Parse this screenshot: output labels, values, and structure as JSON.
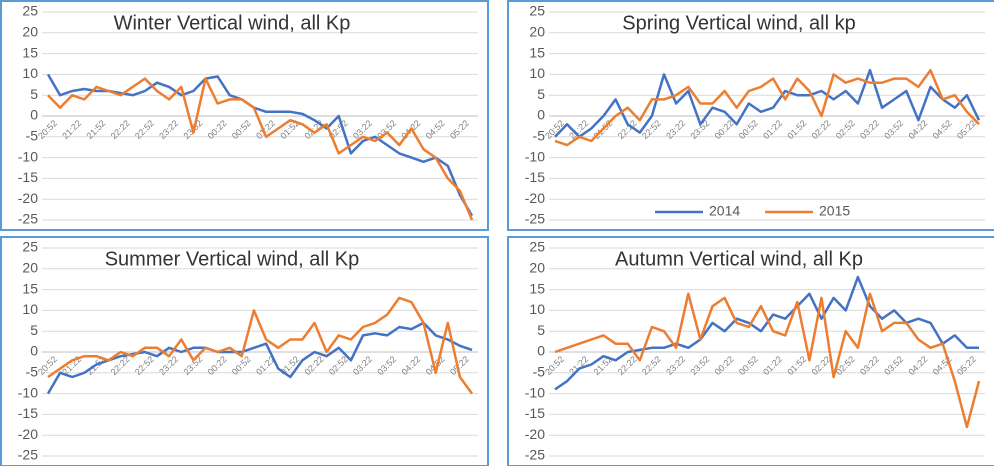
{
  "chart_data": [
    {
      "type": "line",
      "title": "Winter Vertical wind, all Kp",
      "categories": [
        "20:52",
        null,
        "21:22",
        null,
        "21:52",
        null,
        "22:22",
        null,
        "22:52",
        null,
        "23:22",
        null,
        "23:52",
        null,
        "00:22",
        null,
        "00:52",
        null,
        "01:22",
        null,
        "01:52",
        null,
        "02:22",
        null,
        "02:52",
        null,
        "03:22",
        null,
        "03:52",
        null,
        "04:22",
        null,
        "04:52",
        null,
        "05:22",
        null
      ],
      "series": [
        {
          "color": "#4472c4",
          "values": [
            10,
            5,
            6,
            6.5,
            6,
            6,
            5.5,
            5,
            6,
            8,
            7,
            5,
            6,
            9,
            9.5,
            5,
            4,
            2,
            1,
            1,
            1,
            0.5,
            -1,
            -3,
            0,
            -9,
            -6,
            -5,
            -7,
            -9,
            -10,
            -11,
            -10,
            -12,
            -19,
            -24
          ]
        },
        {
          "color": "#ed7d31",
          "values": [
            5,
            2,
            5,
            4,
            7,
            6,
            5,
            7,
            9,
            6,
            4,
            7,
            -4,
            9,
            3,
            4,
            4,
            2,
            -5,
            -3,
            -1,
            -2,
            -4,
            -2,
            -9,
            -7,
            -5,
            -6,
            -4,
            -7,
            -3,
            -8,
            -10,
            -15,
            -18,
            -25
          ]
        }
      ],
      "ylim": [
        -25,
        25
      ],
      "yticks": [
        -25,
        -20,
        -15,
        -10,
        -5,
        0,
        5,
        10,
        15,
        20,
        25
      ],
      "grid": true
    },
    {
      "type": "line",
      "title": "Spring Vertical wind, all kp",
      "categories": [
        "20:52",
        null,
        "21:22",
        null,
        "21:52",
        null,
        "22:22",
        null,
        "22:52",
        null,
        "23:22",
        null,
        "23:52",
        null,
        "00:22",
        null,
        "00:52",
        null,
        "01:22",
        null,
        "01:52",
        null,
        "02:22",
        null,
        "02:52",
        null,
        "03:22",
        null,
        "03:52",
        null,
        "04:22",
        null,
        "04:52",
        null,
        "05:22",
        null
      ],
      "series": [
        {
          "name": "2014",
          "color": "#4472c4",
          "values": [
            -5,
            -2,
            -5,
            -3,
            0,
            4,
            -2,
            -4,
            0,
            10,
            3,
            6,
            -2,
            2,
            1,
            -2,
            3,
            1,
            2,
            6,
            5,
            5,
            6,
            4,
            6,
            3,
            11,
            2,
            4,
            6,
            -1,
            7,
            4,
            2,
            5,
            -1
          ]
        },
        {
          "name": "2015",
          "color": "#ed7d31",
          "values": [
            -6,
            -7,
            -5,
            -6,
            -3,
            0,
            2,
            -1,
            4,
            4,
            5,
            7,
            3,
            3,
            6,
            2,
            6,
            7,
            9,
            4,
            9,
            6,
            0,
            10,
            8,
            9,
            8,
            8,
            9,
            9,
            7,
            11,
            4,
            5,
            1,
            -2
          ]
        }
      ],
      "legend": "bottom",
      "ylim": [
        -25,
        25
      ],
      "yticks": [
        -25,
        -20,
        -15,
        -10,
        -5,
        0,
        5,
        10,
        15,
        20,
        25
      ],
      "grid": true
    },
    {
      "type": "line",
      "title": "Summer Vertical wind, all Kp",
      "categories": [
        "20:52",
        null,
        "21:22",
        null,
        "21:52",
        null,
        "22:22",
        null,
        "22:52",
        null,
        "23:22",
        null,
        "23:52",
        null,
        "00:22",
        null,
        "00:52",
        null,
        "01:22",
        null,
        "01:52",
        null,
        "02:22",
        null,
        "02:52",
        null,
        "03:22",
        null,
        "03:52",
        null,
        "04:22",
        null,
        "04:52",
        null,
        "05:22",
        null
      ],
      "series": [
        {
          "color": "#4472c4",
          "values": [
            -10,
            -5,
            -6,
            -5,
            -3,
            -2,
            -1,
            -0.5,
            0,
            -1,
            1,
            0,
            1,
            1,
            0,
            0,
            0,
            1,
            2,
            -4,
            -6,
            -2,
            0,
            -1,
            1,
            -2,
            4,
            4.5,
            4,
            6,
            5.5,
            7,
            4,
            3,
            1.5,
            0.5
          ]
        },
        {
          "color": "#ed7d31",
          "values": [
            -6,
            -4,
            -2,
            -1,
            -1,
            -2,
            0,
            -1,
            1,
            1,
            -1,
            3,
            -2,
            1,
            0,
            1,
            -1,
            10,
            3,
            1,
            3,
            3,
            7,
            0,
            4,
            3,
            6,
            7,
            9,
            13,
            12,
            7,
            -5,
            7,
            -6,
            -10
          ]
        }
      ],
      "ylim": [
        -25,
        25
      ],
      "yticks": [
        -25,
        -20,
        -15,
        -10,
        -5,
        0,
        5,
        10,
        15,
        20,
        25
      ],
      "grid": true
    },
    {
      "type": "line",
      "title": "Autumn Vertical wind, all Kp",
      "categories": [
        "20:52",
        null,
        "21:22",
        null,
        "21:52",
        null,
        "22:22",
        null,
        "22:52",
        null,
        "23:22",
        null,
        "23:52",
        null,
        "00:22",
        null,
        "00:52",
        null,
        "01:22",
        null,
        "01:52",
        null,
        "02:22",
        null,
        "02:52",
        null,
        "03:22",
        null,
        "03:52",
        null,
        "04:22",
        null,
        "04:52",
        null,
        "05:22",
        null
      ],
      "series": [
        {
          "color": "#4472c4",
          "values": [
            -9,
            -7,
            -4,
            -3,
            -1,
            -2,
            0,
            0.5,
            1,
            1,
            2,
            1,
            3,
            7,
            5,
            8,
            7,
            5,
            9,
            8,
            11,
            14,
            8,
            13,
            10,
            18,
            11,
            8,
            10,
            7,
            8,
            7,
            2,
            4,
            1,
            1
          ]
        },
        {
          "color": "#ed7d31",
          "values": [
            0,
            1,
            2,
            3,
            4,
            2,
            2,
            -2,
            6,
            5,
            1,
            14,
            3,
            11,
            13,
            7,
            6,
            11,
            5,
            4,
            12,
            -2,
            13,
            -6,
            5,
            1,
            14,
            5,
            7,
            7,
            3,
            1,
            2,
            -7,
            -18,
            -7
          ]
        }
      ],
      "ylim": [
        -25,
        25
      ],
      "yticks": [
        -25,
        -20,
        -15,
        -10,
        -5,
        0,
        5,
        10,
        15,
        20,
        25
      ],
      "grid": true
    }
  ]
}
